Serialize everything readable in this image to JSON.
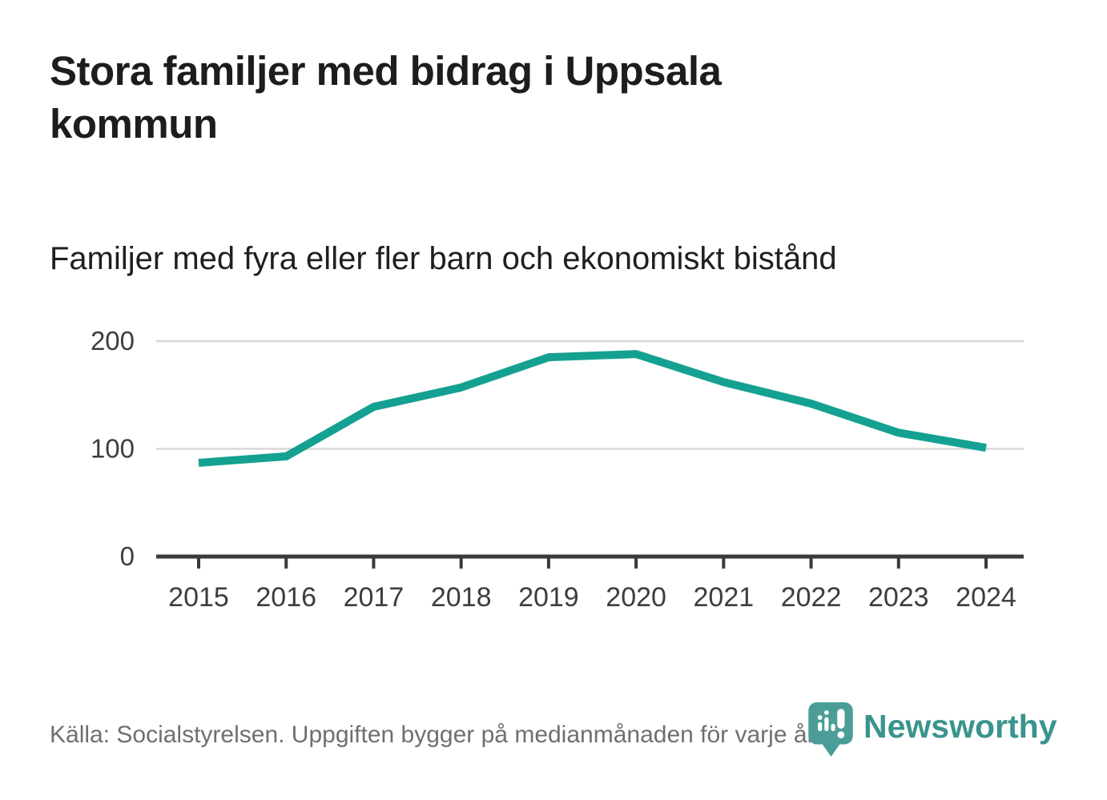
{
  "header": {
    "title_lines": [
      "Stora familjer med bidrag i Uppsala",
      "kommun"
    ],
    "subtitle": "Familjer med fyra eller fler barn och ekonomiskt bistånd"
  },
  "chart_data": {
    "type": "line",
    "title": "Stora familjer med bidrag i Uppsala kommun",
    "subtitle": "Familjer med fyra eller fler barn och ekonomiskt bistånd",
    "categories": [
      "2015",
      "2016",
      "2017",
      "2018",
      "2019",
      "2020",
      "2021",
      "2022",
      "2023",
      "2024"
    ],
    "series": [
      {
        "name": "Familjer med fyra eller fler barn och ekonomiskt bistånd",
        "values": [
          87,
          93,
          139,
          157,
          185,
          188,
          162,
          142,
          115,
          101
        ],
        "color": "#15a191"
      }
    ],
    "xlabel": "",
    "ylabel": "",
    "ylim": [
      0,
      200
    ],
    "yticks": [
      0,
      100,
      200
    ],
    "grid": "horizontal",
    "legend": "none"
  },
  "footer": {
    "source": "Källa: Socialstyrelsen. Uppgiften bygger på medianmånaden för varje år",
    "brand_name": "Newsworthy"
  },
  "colors": {
    "line": "#15a191",
    "grid": "#d8d8d8",
    "axis": "#3a3a3a",
    "tick_label": "#3d3d3d",
    "title": "#1d1d1b",
    "subtitle": "#1f1f1f",
    "source_text": "#6f6f6f",
    "brand_icon": "#4a9e97",
    "brand_text": "#39948d"
  }
}
